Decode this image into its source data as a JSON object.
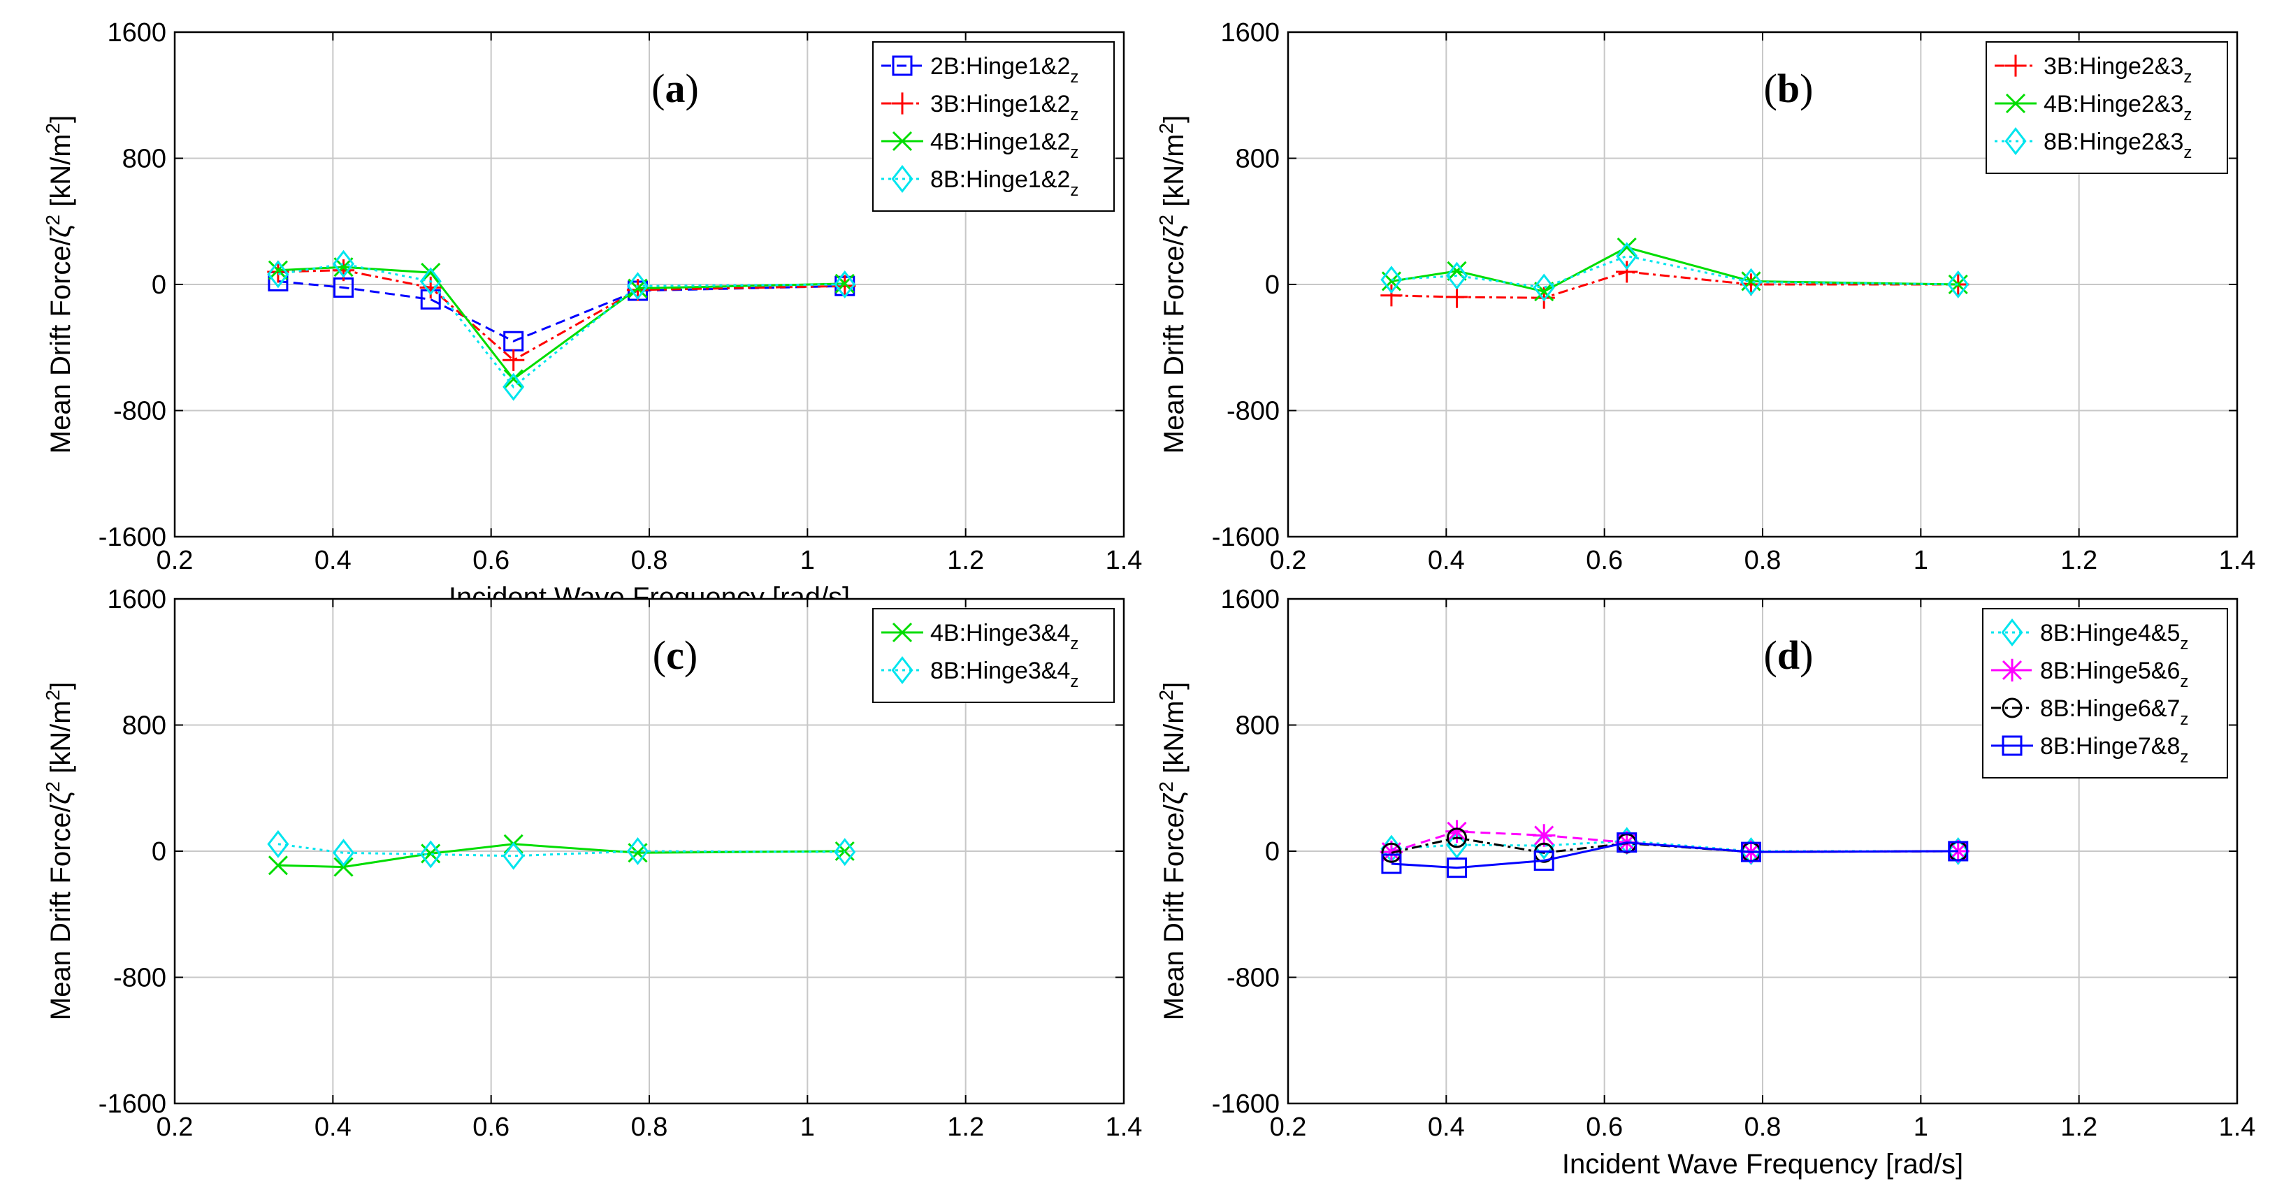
{
  "figure": {
    "xlabel": "Incident Wave Frequency [rad/s]",
    "ylabel": "Mean Drift Force/ζ² [kN/m²]"
  },
  "chart_data": [
    {
      "type": "line",
      "panel": "(a)",
      "panel_letter": "a",
      "xlabel": "Incident Wave Frequency [rad/s]",
      "ylabel": "Mean Drift Force/ζ² [kN/m²]",
      "xlim": [
        0.2,
        1.4
      ],
      "ylim": [
        -1600,
        1600
      ],
      "xticks": [
        "0.2",
        "0.4",
        "0.6",
        "0.8",
        "1",
        "1.2",
        "1.4"
      ],
      "yticks": [
        "-1600",
        "-800",
        "0",
        "800",
        "1600"
      ],
      "grid": true,
      "legend_position": "top-right",
      "x": [
        0.3307,
        0.4134,
        0.5236,
        0.6283,
        0.7854,
        1.0472
      ],
      "series": [
        {
          "name": "2B:Hinge1&2",
          "sub": "z",
          "color": "#0000ff",
          "dash": "14,8",
          "marker": "square",
          "values": [
            20,
            -20,
            -95,
            -360,
            -40,
            -10
          ]
        },
        {
          "name": "3B:Hinge1&2",
          "sub": "z",
          "color": "#ff0000",
          "dash": "14,6,4,6",
          "marker": "plus",
          "values": [
            80,
            90,
            -20,
            -480,
            -35,
            -10
          ]
        },
        {
          "name": "4B:Hinge1&2",
          "sub": "z",
          "color": "#00dd00",
          "dash": "",
          "marker": "x",
          "values": [
            90,
            110,
            75,
            -600,
            -25,
            5
          ]
        },
        {
          "name": "8B:Hinge1&2",
          "sub": "z",
          "color": "#00e5ee",
          "dash": "4,6",
          "marker": "diamond",
          "values": [
            65,
            130,
            20,
            -650,
            -10,
            0
          ]
        }
      ]
    },
    {
      "type": "line",
      "panel": "(b)",
      "panel_letter": "b",
      "xlabel": "",
      "ylabel": "Mean Drift Force/ζ² [kN/m²]",
      "xlim": [
        0.2,
        1.4
      ],
      "ylim": [
        -1600,
        1600
      ],
      "xticks": [
        "0.2",
        "0.4",
        "0.6",
        "0.8",
        "1",
        "1.2",
        "1.4"
      ],
      "yticks": [
        "-1600",
        "-800",
        "0",
        "800",
        "1600"
      ],
      "grid": true,
      "legend_position": "top-right",
      "x": [
        0.3307,
        0.4134,
        0.5236,
        0.6283,
        0.7854,
        1.0472
      ],
      "series": [
        {
          "name": "3B:Hinge2&3",
          "sub": "z",
          "color": "#ff0000",
          "dash": "14,6,4,6",
          "marker": "plus",
          "values": [
            -70,
            -80,
            -85,
            80,
            0,
            0
          ]
        },
        {
          "name": "4B:Hinge2&3",
          "sub": "z",
          "color": "#00dd00",
          "dash": "",
          "marker": "x",
          "values": [
            20,
            85,
            -45,
            235,
            20,
            0
          ]
        },
        {
          "name": "8B:Hinge2&3",
          "sub": "z",
          "color": "#00e5ee",
          "dash": "4,6",
          "marker": "diamond",
          "values": [
            30,
            55,
            -20,
            180,
            15,
            0
          ]
        }
      ]
    },
    {
      "type": "line",
      "panel": "(c)",
      "panel_letter": "c",
      "xlabel": "",
      "ylabel": "Mean Drift Force/ζ² [kN/m²]",
      "xlim": [
        0.2,
        1.4
      ],
      "ylim": [
        -1600,
        1600
      ],
      "xticks": [
        "0.2",
        "0.4",
        "0.6",
        "0.8",
        "1",
        "1.2",
        "1.4"
      ],
      "yticks": [
        "-1600",
        "-800",
        "0",
        "800",
        "1600"
      ],
      "grid": true,
      "legend_position": "top-right",
      "x": [
        0.3307,
        0.4134,
        0.5236,
        0.6283,
        0.7854,
        1.0472
      ],
      "series": [
        {
          "name": "4B:Hinge3&4",
          "sub": "z",
          "color": "#00dd00",
          "dash": "",
          "marker": "x",
          "values": [
            -90,
            -100,
            -15,
            45,
            -10,
            0
          ]
        },
        {
          "name": "8B:Hinge3&4",
          "sub": "z",
          "color": "#00e5ee",
          "dash": "4,6",
          "marker": "diamond",
          "values": [
            45,
            -10,
            -20,
            -30,
            0,
            -5
          ]
        }
      ]
    },
    {
      "type": "line",
      "panel": "(d)",
      "panel_letter": "d",
      "xlabel": "Incident Wave Frequency [rad/s]",
      "ylabel": "Mean Drift Force/ζ² [kN/m²]",
      "xlim": [
        0.2,
        1.4
      ],
      "ylim": [
        -1600,
        1600
      ],
      "xticks": [
        "0.2",
        "0.4",
        "0.6",
        "0.8",
        "1",
        "1.2",
        "1.4"
      ],
      "yticks": [
        "-1600",
        "-800",
        "0",
        "800",
        "1600"
      ],
      "grid": true,
      "legend_position": "top-right",
      "x": [
        0.3307,
        0.4134,
        0.5236,
        0.6283,
        0.7854,
        1.0472
      ],
      "series": [
        {
          "name": "8B:Hinge4&5",
          "sub": "z",
          "color": "#00e5ee",
          "dash": "4,6",
          "marker": "diamond",
          "values": [
            15,
            40,
            35,
            65,
            0,
            0
          ]
        },
        {
          "name": "8B:Hinge5&6",
          "sub": "z",
          "color": "#ff00ff",
          "dash": "14,8",
          "marker": "asterisk",
          "values": [
            -5,
            125,
            100,
            55,
            -5,
            0
          ]
        },
        {
          "name": "8B:Hinge6&7",
          "sub": "z",
          "color": "#000000",
          "dash": "14,6,4,6",
          "marker": "circle",
          "values": [
            -10,
            85,
            -10,
            50,
            -5,
            0
          ]
        },
        {
          "name": "8B:Hinge7&8",
          "sub": "z",
          "color": "#0000ff",
          "dash": "",
          "marker": "square",
          "values": [
            -80,
            -105,
            -60,
            55,
            -5,
            0
          ]
        }
      ]
    }
  ]
}
